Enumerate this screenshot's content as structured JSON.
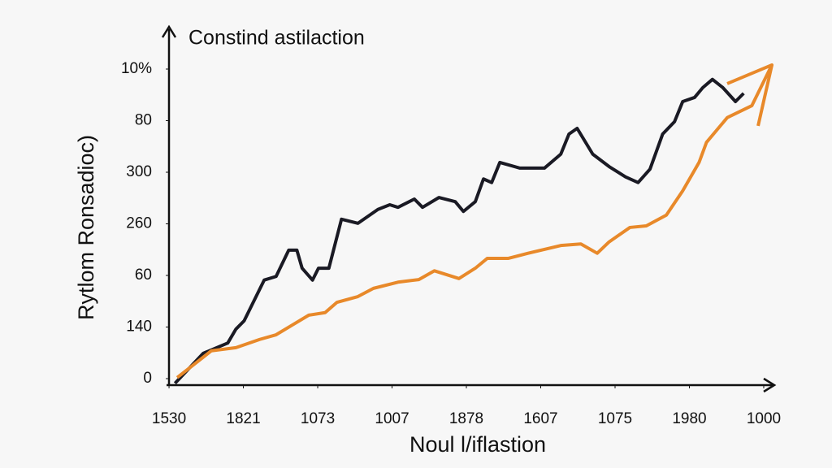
{
  "chart_data": {
    "type": "line",
    "title": "Constind astilaction",
    "x_label": "Noul l/iflastion",
    "y_label": "Rytlom Ronsadioc)",
    "xlim": [
      -0.03,
      8.15
    ],
    "ylim": [
      -0.1,
      6.7
    ],
    "xticks": [
      {
        "value": 0,
        "label": "1530"
      },
      {
        "value": 1,
        "label": "1821"
      },
      {
        "value": 2,
        "label": "1073"
      },
      {
        "value": 3,
        "label": "1007"
      },
      {
        "value": 4,
        "label": "1878"
      },
      {
        "value": 5,
        "label": "1607"
      },
      {
        "value": 6,
        "label": "1075"
      },
      {
        "value": 7,
        "label": "1980"
      },
      {
        "value": 8,
        "label": "1000"
      }
    ],
    "yticks": [
      0,
      {
        "value": 1,
        "label": "140"
      },
      {
        "value": 2,
        "label": "60"
      },
      {
        "value": 3,
        "label": "260"
      },
      {
        "value": 4,
        "label": "300"
      },
      {
        "value": 5,
        "label": "80"
      },
      {
        "value": 6,
        "label": "10%"
      }
    ],
    "series": [
      {
        "color": "#1a1a24",
        "x": [
          0.08,
          0.46,
          0.79,
          0.9,
          1.01,
          1.28,
          1.44,
          1.61,
          1.72,
          1.79,
          1.93,
          2.01,
          2.15,
          2.32,
          2.54,
          2.81,
          2.97,
          3.08,
          3.3,
          3.41,
          3.63,
          3.85,
          3.96,
          4.12,
          4.23,
          4.34,
          4.45,
          4.72,
          5.05,
          5.27,
          5.38,
          5.49,
          5.7,
          5.92,
          6.14,
          6.31,
          6.47,
          6.64,
          6.8,
          6.91,
          7.07,
          7.18,
          7.31,
          7.45,
          7.62,
          7.73
        ],
        "values": [
          -0.09,
          0.49,
          0.69,
          0.96,
          1.12,
          1.91,
          1.98,
          2.49,
          2.49,
          2.14,
          1.91,
          2.14,
          2.14,
          3.09,
          3.01,
          3.28,
          3.37,
          3.32,
          3.48,
          3.32,
          3.51,
          3.43,
          3.24,
          3.43,
          3.87,
          3.8,
          4.19,
          4.08,
          4.08,
          4.35,
          4.74,
          4.85,
          4.35,
          4.11,
          3.91,
          3.8,
          4.06,
          4.74,
          4.98,
          5.37,
          5.45,
          5.64,
          5.8,
          5.64,
          5.37,
          5.53
        ]
      },
      {
        "color": "#e8892a",
        "x": [
          0.11,
          0.57,
          0.9,
          1.22,
          1.44,
          1.66,
          1.88,
          2.1,
          2.26,
          2.54,
          2.75,
          3.08,
          3.36,
          3.57,
          3.9,
          4.12,
          4.28,
          4.56,
          4.83,
          5.27,
          5.54,
          5.76,
          5.92,
          6.2,
          6.42,
          6.69,
          6.91,
          7.13,
          7.23,
          7.51,
          7.84,
          8.11
        ],
        "values": [
          0.02,
          0.54,
          0.6,
          0.76,
          0.85,
          1.04,
          1.23,
          1.28,
          1.48,
          1.59,
          1.75,
          1.87,
          1.92,
          2.09,
          1.94,
          2.14,
          2.33,
          2.33,
          2.43,
          2.58,
          2.61,
          2.43,
          2.65,
          2.93,
          2.96,
          3.17,
          3.64,
          4.19,
          4.58,
          5.06,
          5.29,
          6.08
        ]
      }
    ]
  }
}
